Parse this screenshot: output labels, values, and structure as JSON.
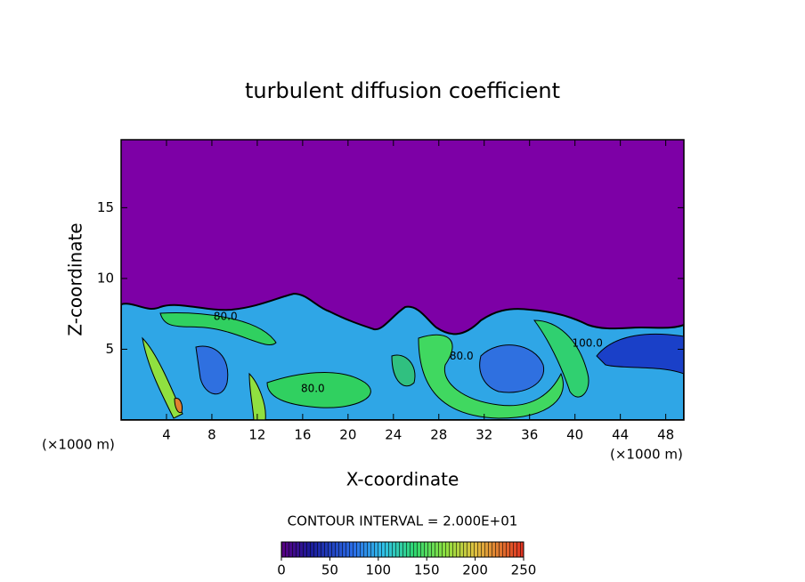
{
  "chart_data": {
    "type": "contour",
    "title": "turbulent diffusion coefficient",
    "xlabel": "X-coordinate",
    "ylabel": "Z-coordinate",
    "x_unit_label": "(×1000 m)",
    "x_unit_label_right": "(×1000 m)",
    "xlim": [
      0,
      49.6
    ],
    "ylim": [
      0,
      19.8
    ],
    "xticks": [
      4,
      8,
      12,
      16,
      20,
      24,
      28,
      32,
      36,
      40,
      44,
      48
    ],
    "yticks": [
      5,
      10,
      15
    ],
    "contour_interval_text": "CONTOUR INTERVAL = 2.000E+01",
    "colorbar": {
      "lim": [
        0,
        250
      ],
      "ticks": [
        0,
        50,
        100,
        150,
        200,
        250
      ]
    },
    "annotations": [
      {
        "text": "80.0",
        "x": 16.9,
        "z": 2.2
      },
      {
        "text": "80.0",
        "x": 30.0,
        "z": 4.5
      },
      {
        "text": "100.0",
        "x": 41.1,
        "z": 5.4
      },
      {
        "text": "80.0",
        "x": 9.2,
        "z": 7.3
      }
    ]
  }
}
